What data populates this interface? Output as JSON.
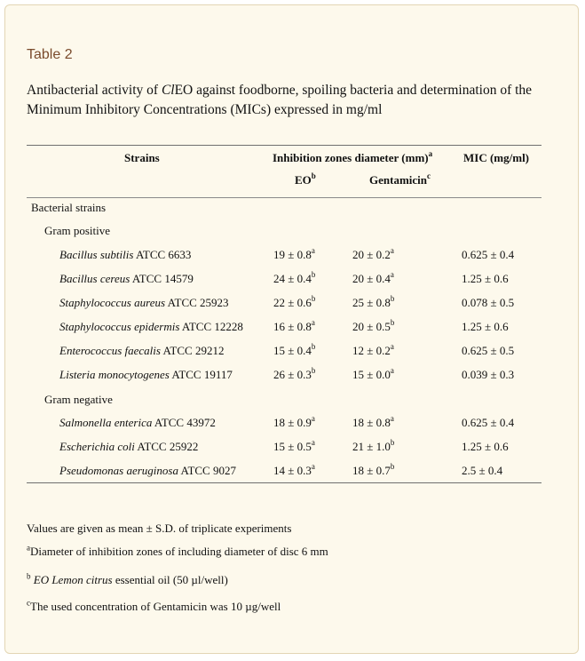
{
  "table_label": "Table 2",
  "caption": {
    "before": "Antibacterial activity of ",
    "italic": "Cl",
    "after": "EO against foodborne, spoiling bacteria and determination of the Minimum Inhibitory Concentrations (MICs) expressed in mg/ml"
  },
  "headers": {
    "strains": "Strains",
    "inhibition": "Inhibition zones diameter (mm)",
    "inhibition_sup": "a",
    "mic": "MIC (mg/ml)",
    "eo": "EO",
    "eo_sup": "b",
    "gentamicin": "Gentamicin",
    "gentamicin_sup": "c"
  },
  "groups": {
    "bacterial": "Bacterial strains",
    "gram_positive": "Gram positive",
    "gram_negative": "Gram negative"
  },
  "rows": [
    {
      "species": "Bacillus subtilis",
      "atcc": " ATCC 6633",
      "eo": "19 ± 0.8",
      "eo_sup": "a",
      "gent": "20 ± 0.2",
      "gent_sup": "a",
      "mic": "0.625 ± 0.4"
    },
    {
      "species": "Bacillus cereus",
      "atcc": " ATCC 14579",
      "eo": "24 ± 0.4",
      "eo_sup": "b",
      "gent": "20 ± 0.4",
      "gent_sup": "a",
      "mic": "1.25 ± 0.6"
    },
    {
      "species": "Staphylococcus aureus",
      "atcc": " ATCC 25923",
      "eo": "22 ± 0.6",
      "eo_sup": "b",
      "gent": "25 ± 0.8",
      "gent_sup": "b",
      "mic": "0.078 ± 0.5"
    },
    {
      "species": "Staphylococcus epidermis",
      "atcc": " ATCC 12228",
      "eo": "16 ± 0.8",
      "eo_sup": "a",
      "gent": "20 ± 0.5",
      "gent_sup": "b",
      "mic": "1.25 ± 0.6"
    },
    {
      "species": "Enterococcus faecalis",
      "atcc": " ATCC 29212",
      "eo": "15 ± 0.4",
      "eo_sup": "b",
      "gent": "12 ± 0.2",
      "gent_sup": "a",
      "mic": "0.625 ± 0.5"
    },
    {
      "species": "Listeria monocytogenes",
      "atcc": " ATCC 19117",
      "eo": "26 ± 0.3",
      "eo_sup": "b",
      "gent": "15 ± 0.0",
      "gent_sup": "a",
      "mic": "0.039 ± 0.3"
    },
    {
      "species": "Salmonella enterica",
      "atcc": " ATCC 43972",
      "eo": "18 ± 0.9",
      "eo_sup": "a",
      "gent": "18 ± 0.8",
      "gent_sup": "a",
      "mic": "0.625 ± 0.4"
    },
    {
      "species": "Escherichia coli",
      "atcc": " ATCC 25922",
      "eo": "15 ± 0.5",
      "eo_sup": "a",
      "gent": "21 ± 1.0",
      "gent_sup": "b",
      "mic": "1.25 ± 0.6"
    },
    {
      "species": "Pseudomonas aeruginosa",
      "atcc": " ATCC 9027",
      "eo": "14 ± 0.3",
      "eo_sup": "a",
      "gent": "18 ± 0.7",
      "gent_sup": "b",
      "mic": "2.5 ± 0.4"
    }
  ],
  "footnotes": {
    "values": "Values are given as mean ± S.D. of triplicate experiments",
    "a_sup": "a",
    "a_text": "Diameter of inhibition zones of including diameter of disc 6 mm",
    "b_sup": "b",
    "b_italic": " EO Lemon citrus",
    "b_text": " essential oil (50 µl/well)",
    "c_sup": "c",
    "c_text": "The used concentration of Gentamicin was 10 µg/well"
  }
}
